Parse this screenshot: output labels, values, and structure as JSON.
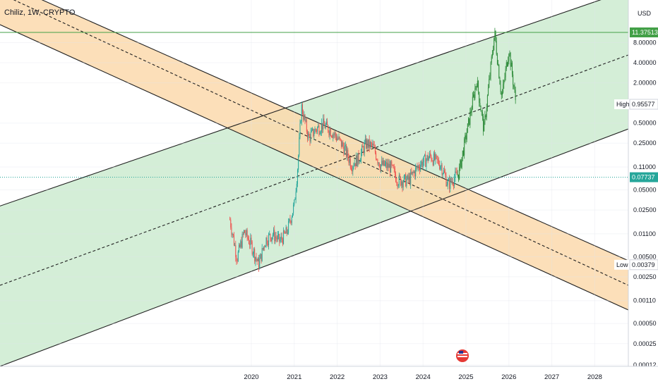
{
  "header": {
    "title": "Chiliz, 1W, CRYPTO",
    "currency": "USD"
  },
  "colors": {
    "up": "#26a69a",
    "down": "#ef5350",
    "recent": "#2e8b3a",
    "green_fill": "#cdebd0",
    "orange_fill": "#fbd9ad",
    "channel_line": "#1f1f1f",
    "top_line": "#43a047",
    "current_line": "#26a69a"
  },
  "chart_data": {
    "type": "candlestick",
    "symbol": "Chiliz",
    "interval": "1W",
    "exchange": "CRYPTO",
    "y_scale": "log",
    "x_ticks": [
      "2020",
      "2021",
      "2022",
      "2023",
      "2024",
      "2025",
      "2026",
      "2027",
      "2028"
    ],
    "y_ticks": [
      "8.00000",
      "4.00000",
      "2.00000",
      "0.50000",
      "0.25000",
      "0.11000",
      "0.05000",
      "0.02500",
      "0.01100",
      "0.00500",
      "0.00250",
      "0.00110",
      "0.00050",
      "0.00025",
      "0.00012"
    ],
    "markers": [
      {
        "label": "",
        "value": "11.37513",
        "kind": "top"
      },
      {
        "label": "High",
        "value": "0.95577",
        "kind": "high"
      },
      {
        "label": "",
        "value": "0.07737",
        "kind": "current"
      },
      {
        "label": "Low",
        "value": "0.00379",
        "kind": "low"
      }
    ],
    "price_path": [
      [
        "2019-07",
        0.018
      ],
      [
        "2019-09",
        0.0048
      ],
      [
        "2019-11",
        0.012
      ],
      [
        "2020-01",
        0.0075
      ],
      [
        "2020-03",
        0.0038
      ],
      [
        "2020-05",
        0.009
      ],
      [
        "2020-07",
        0.011
      ],
      [
        "2020-09",
        0.0085
      ],
      [
        "2020-11",
        0.012
      ],
      [
        "2021-01",
        0.03
      ],
      [
        "2021-02",
        0.12
      ],
      [
        "2021-03",
        0.9
      ],
      [
        "2021-05",
        0.3
      ],
      [
        "2021-07",
        0.4
      ],
      [
        "2021-09",
        0.48
      ],
      [
        "2021-11",
        0.4
      ],
      [
        "2022-01",
        0.3
      ],
      [
        "2022-03",
        0.21
      ],
      [
        "2022-05",
        0.12
      ],
      [
        "2022-07",
        0.15
      ],
      [
        "2022-09",
        0.25
      ],
      [
        "2022-11",
        0.22
      ],
      [
        "2023-01",
        0.12
      ],
      [
        "2023-04",
        0.11
      ],
      [
        "2023-06",
        0.07
      ],
      [
        "2023-09",
        0.07
      ],
      [
        "2023-12",
        0.12
      ],
      [
        "2024-03",
        0.16
      ],
      [
        "2024-06",
        0.12
      ],
      [
        "2024-08",
        0.06
      ],
      [
        "2024-11",
        0.09
      ],
      [
        "2025-02",
        0.6
      ],
      [
        "2025-04",
        2.2
      ],
      [
        "2025-06",
        0.4
      ],
      [
        "2025-09",
        11.4
      ],
      [
        "2025-11",
        1.2
      ],
      [
        "2026-01",
        6.5
      ],
      [
        "2026-03",
        0.96
      ]
    ],
    "channels": [
      {
        "name": "",
        "color": "green",
        "trend": "ascending"
      },
      {
        "name": "",
        "color": "orange",
        "trend": "descending"
      }
    ],
    "grid": true
  }
}
